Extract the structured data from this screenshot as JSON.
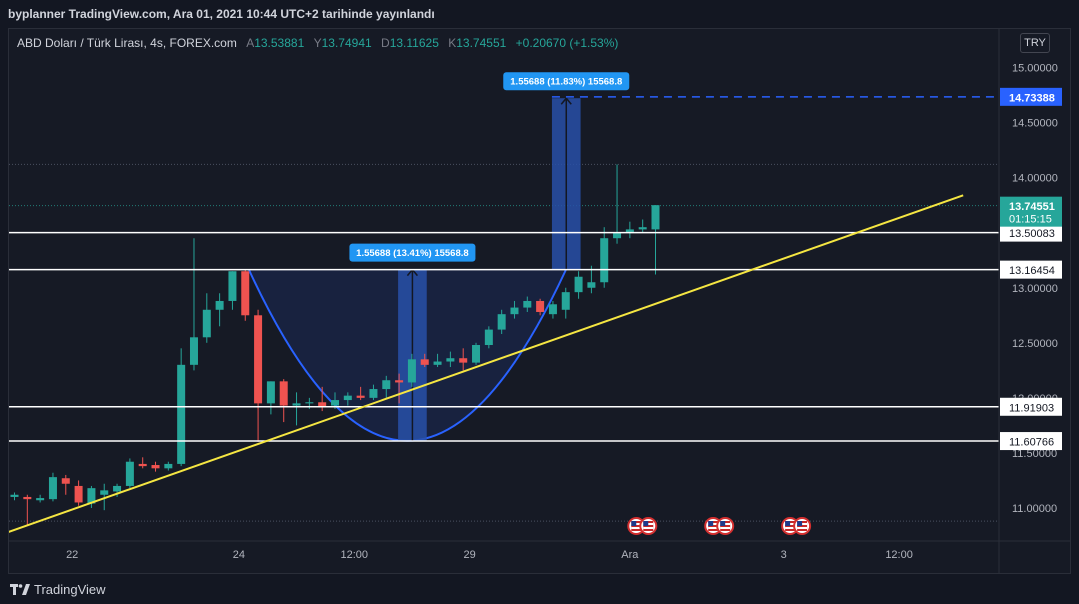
{
  "header": {
    "published": "byplanner TradingView.com, Ara 01, 2021 10:44 UTC+2 tarihinde yayınlandı"
  },
  "legend": {
    "symbol": "ABD Doları / Türk Lirası, 4s, FOREX.com",
    "open_label": "A",
    "open": "13.53881",
    "high_label": "Y",
    "high": "13.74941",
    "low_label": "D",
    "low": "13.11625",
    "close_label": "K",
    "close": "13.74551",
    "change": "+0.20670 (+1.53%)"
  },
  "currency": "TRY",
  "footer": {
    "brand": "TradingView"
  },
  "colors": {
    "up": "#26a69a",
    "down": "#ef5350",
    "trendline": "#f5e642",
    "arc": "#2962ff",
    "measure": "#2850a8",
    "target": "#2962ff",
    "hline": "#ffffff",
    "last_price": "#26a69a"
  },
  "chart_data": {
    "type": "candlestick",
    "y_range": [
      10.7,
      15.35
    ],
    "y_ticks": [
      "11.00000",
      "11.50000",
      "12.00000",
      "12.50000",
      "13.00000",
      "13.50000",
      "14.00000",
      "14.50000",
      "15.00000"
    ],
    "x_labels": [
      {
        "label": "22",
        "index": 4.5
      },
      {
        "label": "24",
        "index": 17.5
      },
      {
        "label": "12:00",
        "index": 26.5
      },
      {
        "label": "29",
        "index": 35.5
      },
      {
        "label": "Ara",
        "index": 48
      },
      {
        "label": "3",
        "index": 60
      },
      {
        "label": "12:00",
        "index": 69
      }
    ],
    "candles": [
      {
        "o": 11.1,
        "h": 11.14,
        "l": 11.07,
        "c": 11.12
      },
      {
        "o": 11.1,
        "h": 11.12,
        "l": 10.85,
        "c": 11.08
      },
      {
        "o": 11.07,
        "h": 11.12,
        "l": 11.05,
        "c": 11.09
      },
      {
        "o": 11.08,
        "h": 11.32,
        "l": 11.06,
        "c": 11.28
      },
      {
        "o": 11.27,
        "h": 11.3,
        "l": 11.12,
        "c": 11.22
      },
      {
        "o": 11.2,
        "h": 11.25,
        "l": 11.02,
        "c": 11.05
      },
      {
        "o": 11.04,
        "h": 11.2,
        "l": 11.0,
        "c": 11.18
      },
      {
        "o": 11.12,
        "h": 11.22,
        "l": 10.98,
        "c": 11.16
      },
      {
        "o": 11.15,
        "h": 11.22,
        "l": 11.1,
        "c": 11.2
      },
      {
        "o": 11.2,
        "h": 11.45,
        "l": 11.18,
        "c": 11.42
      },
      {
        "o": 11.4,
        "h": 11.46,
        "l": 11.36,
        "c": 11.38
      },
      {
        "o": 11.39,
        "h": 11.42,
        "l": 11.33,
        "c": 11.36
      },
      {
        "o": 11.36,
        "h": 11.42,
        "l": 11.34,
        "c": 11.4
      },
      {
        "o": 11.4,
        "h": 12.45,
        "l": 11.38,
        "c": 12.3
      },
      {
        "o": 12.3,
        "h": 13.45,
        "l": 12.25,
        "c": 12.55
      },
      {
        "o": 12.55,
        "h": 12.95,
        "l": 12.5,
        "c": 12.8
      },
      {
        "o": 12.8,
        "h": 12.95,
        "l": 12.65,
        "c": 12.88
      },
      {
        "o": 12.88,
        "h": 13.15,
        "l": 12.8,
        "c": 13.15
      },
      {
        "o": 13.15,
        "h": 13.16,
        "l": 12.7,
        "c": 12.75
      },
      {
        "o": 12.75,
        "h": 12.8,
        "l": 11.6,
        "c": 11.95
      },
      {
        "o": 11.95,
        "h": 12.15,
        "l": 11.85,
        "c": 12.15
      },
      {
        "o": 12.15,
        "h": 12.17,
        "l": 11.78,
        "c": 11.93
      },
      {
        "o": 11.93,
        "h": 12.05,
        "l": 11.75,
        "c": 11.95
      },
      {
        "o": 11.95,
        "h": 12.0,
        "l": 11.9,
        "c": 11.96
      },
      {
        "o": 11.96,
        "h": 12.1,
        "l": 11.88,
        "c": 11.92
      },
      {
        "o": 11.93,
        "h": 12.05,
        "l": 11.9,
        "c": 11.98
      },
      {
        "o": 11.98,
        "h": 12.05,
        "l": 11.93,
        "c": 12.02
      },
      {
        "o": 12.02,
        "h": 12.1,
        "l": 11.98,
        "c": 12.0
      },
      {
        "o": 12.0,
        "h": 12.12,
        "l": 11.98,
        "c": 12.08
      },
      {
        "o": 12.08,
        "h": 12.2,
        "l": 12.0,
        "c": 12.16
      },
      {
        "o": 12.16,
        "h": 12.22,
        "l": 11.95,
        "c": 12.14
      },
      {
        "o": 12.14,
        "h": 12.4,
        "l": 12.1,
        "c": 12.35
      },
      {
        "o": 12.35,
        "h": 12.4,
        "l": 12.28,
        "c": 12.3
      },
      {
        "o": 12.3,
        "h": 12.4,
        "l": 12.28,
        "c": 12.33
      },
      {
        "o": 12.33,
        "h": 12.42,
        "l": 12.28,
        "c": 12.36
      },
      {
        "o": 12.36,
        "h": 12.45,
        "l": 12.25,
        "c": 12.32
      },
      {
        "o": 12.32,
        "h": 12.5,
        "l": 12.3,
        "c": 12.48
      },
      {
        "o": 12.48,
        "h": 12.65,
        "l": 12.45,
        "c": 12.62
      },
      {
        "o": 12.62,
        "h": 12.8,
        "l": 12.58,
        "c": 12.76
      },
      {
        "o": 12.76,
        "h": 12.88,
        "l": 12.72,
        "c": 12.82
      },
      {
        "o": 12.82,
        "h": 12.92,
        "l": 12.78,
        "c": 12.88
      },
      {
        "o": 12.88,
        "h": 12.9,
        "l": 12.75,
        "c": 12.78
      },
      {
        "o": 12.76,
        "h": 12.88,
        "l": 12.72,
        "c": 12.85
      },
      {
        "o": 12.8,
        "h": 13.0,
        "l": 12.72,
        "c": 12.96
      },
      {
        "o": 12.96,
        "h": 13.15,
        "l": 12.9,
        "c": 13.1
      },
      {
        "o": 13.0,
        "h": 13.2,
        "l": 12.95,
        "c": 13.05
      },
      {
        "o": 13.05,
        "h": 13.55,
        "l": 13.0,
        "c": 13.45
      },
      {
        "o": 13.45,
        "h": 14.12,
        "l": 13.4,
        "c": 13.5
      },
      {
        "o": 13.5,
        "h": 13.6,
        "l": 13.45,
        "c": 13.53
      },
      {
        "o": 13.53,
        "h": 13.62,
        "l": 13.5,
        "c": 13.55
      },
      {
        "o": 13.53,
        "h": 13.75,
        "l": 13.12,
        "c": 13.75
      }
    ],
    "horizontal_lines": [
      {
        "value": 13.50083,
        "label": "13.50083"
      },
      {
        "value": 13.16454,
        "label": "13.16454"
      },
      {
        "value": 11.91903,
        "label": "11.91903"
      },
      {
        "value": 11.60766,
        "label": "11.60766"
      }
    ],
    "target_line": {
      "value": 14.73388,
      "label": "14.73388"
    },
    "last_price": {
      "value": 13.74551,
      "label": "13.74551",
      "countdown": "01:15:15"
    },
    "trendline": {
      "x0": -1,
      "y0": 10.76,
      "x1": 74,
      "y1": 13.84
    },
    "measurements": [
      {
        "label": "1.55688 (13.41%) 15568.8",
        "from": 11.60766,
        "to": 13.16454,
        "x0": 30,
        "x1": 32
      },
      {
        "label": "1.55688 (11.83%) 15568.8",
        "from": 13.16454,
        "to": 14.72142,
        "x0": 42,
        "x1": 44
      }
    ],
    "arc": {
      "x_left": 18.3,
      "x_right": 43,
      "x_mid": 30.6,
      "y_top": 13.16,
      "y_bottom": 11.61
    },
    "event_markers": [
      {
        "index": 48.5
      },
      {
        "index": 54.5
      },
      {
        "index": 60.5
      }
    ]
  }
}
